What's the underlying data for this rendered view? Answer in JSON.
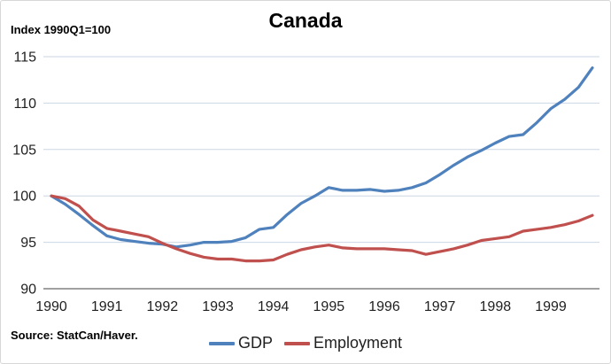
{
  "title": "Canada",
  "axis_note": "Index 1990Q1=100",
  "source_note": "Source: StatCan/Haver.",
  "colors": {
    "gdp_line": "#4F81BD",
    "employment_line": "#C0504D",
    "gridline": "#CBD6E4",
    "axis_line": "#808080",
    "tick_text": "#1f1f1f",
    "frame_border": "#d7d7d7"
  },
  "chart_data": {
    "type": "line",
    "title": "Canada",
    "index_note": "Index 1990Q1=100",
    "source": "Source: StatCan/Haver.",
    "x_frequency": "quarterly",
    "x_range": [
      "1990Q1",
      "1999Q4"
    ],
    "x_tick_labels": [
      "1990",
      "1991",
      "1992",
      "1993",
      "1994",
      "1995",
      "1996",
      "1997",
      "1998",
      "1999"
    ],
    "y_ticks": [
      90,
      95,
      100,
      105,
      110,
      115
    ],
    "ylim": [
      90,
      115
    ],
    "gridlines": "horizontal",
    "legend_position": "bottom",
    "series": [
      {
        "name": "GDP",
        "color": "#4F81BD",
        "values": [
          100.0,
          99.1,
          98.0,
          96.8,
          95.7,
          95.3,
          95.1,
          94.9,
          94.8,
          94.5,
          94.7,
          95.0,
          95.0,
          95.1,
          95.5,
          96.4,
          96.6,
          98.0,
          99.2,
          100.0,
          100.9,
          100.6,
          100.6,
          100.7,
          100.5,
          100.6,
          100.9,
          101.4,
          102.3,
          103.3,
          104.2,
          104.9,
          105.7,
          106.4,
          106.6,
          107.9,
          109.4,
          110.4,
          111.7,
          113.8
        ]
      },
      {
        "name": "Employment",
        "color": "#C0504D",
        "values": [
          100.0,
          99.7,
          98.9,
          97.4,
          96.5,
          96.2,
          95.9,
          95.6,
          94.9,
          94.3,
          93.8,
          93.4,
          93.2,
          93.2,
          93.0,
          93.0,
          93.1,
          93.7,
          94.2,
          94.5,
          94.7,
          94.4,
          94.3,
          94.3,
          94.3,
          94.2,
          94.1,
          93.7,
          94.0,
          94.3,
          94.7,
          95.2,
          95.4,
          95.6,
          96.2,
          96.4,
          96.6,
          96.9,
          97.3,
          97.9
        ]
      }
    ]
  }
}
